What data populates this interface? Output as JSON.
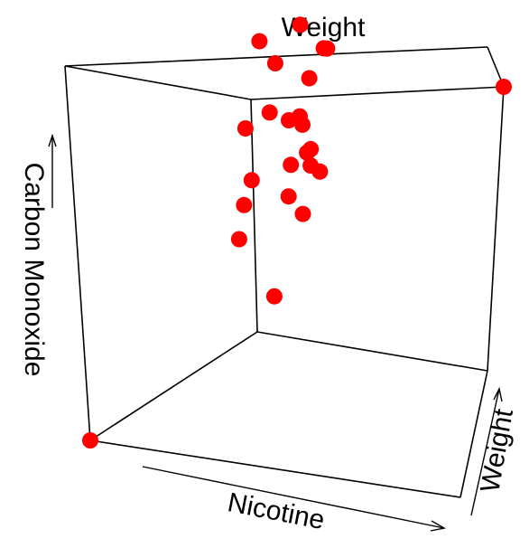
{
  "chart_data": {
    "type": "scatter3d",
    "xlabel": "Nicotine",
    "ylabel": "Weight",
    "zlabel": "Carbon Monoxide",
    "grid": false,
    "box": true,
    "point_color": "#ff0000",
    "points": [
      {
        "x": 0.0,
        "y": 0.0,
        "z": 0.0
      },
      {
        "x": 1.0,
        "y": 1.0,
        "z": 1.0
      },
      {
        "x": 0.45,
        "y": 0.4,
        "z": 0.45
      },
      {
        "x": 0.48,
        "y": 0.52,
        "z": 0.3
      },
      {
        "x": 0.52,
        "y": 0.38,
        "z": 0.52
      },
      {
        "x": 0.55,
        "y": 0.4,
        "z": 0.58
      },
      {
        "x": 0.6,
        "y": 0.35,
        "z": 0.7
      },
      {
        "x": 0.63,
        "y": 0.6,
        "z": 0.65
      },
      {
        "x": 0.62,
        "y": 0.62,
        "z": 0.62
      },
      {
        "x": 0.58,
        "y": 0.48,
        "z": 0.76
      },
      {
        "x": 0.6,
        "y": 0.55,
        "z": 0.74
      },
      {
        "x": 0.64,
        "y": 0.58,
        "z": 0.72
      },
      {
        "x": 0.66,
        "y": 0.5,
        "z": 0.6
      },
      {
        "x": 0.7,
        "y": 0.6,
        "z": 0.58
      },
      {
        "x": 0.72,
        "y": 0.55,
        "z": 0.63
      },
      {
        "x": 0.76,
        "y": 0.48,
        "z": 0.7
      },
      {
        "x": 0.74,
        "y": 0.4,
        "z": 0.84
      },
      {
        "x": 0.78,
        "y": 0.52,
        "z": 0.8
      },
      {
        "x": 0.8,
        "y": 0.58,
        "z": 0.88
      },
      {
        "x": 0.84,
        "y": 0.45,
        "z": 0.92
      },
      {
        "x": 0.86,
        "y": 0.55,
        "z": 0.86
      },
      {
        "x": 0.72,
        "y": 0.35,
        "z": 0.9
      },
      {
        "x": 0.58,
        "y": 0.6,
        "z": 0.5
      },
      {
        "x": 0.7,
        "y": 0.45,
        "z": 0.5
      }
    ]
  }
}
